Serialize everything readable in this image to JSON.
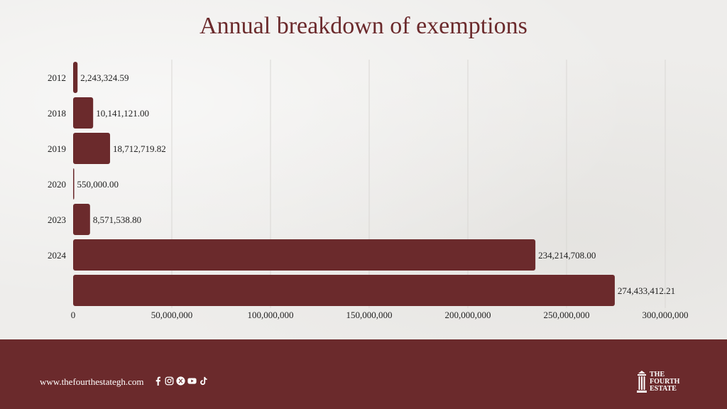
{
  "chart_data": {
    "type": "bar",
    "orientation": "horizontal",
    "title": "Annual breakdown of exemptions",
    "categories": [
      "2012",
      "2018",
      "2019",
      "2020",
      "2023",
      "2024",
      ""
    ],
    "values": [
      2243324.59,
      10141121.0,
      18712719.82,
      550000.0,
      8571538.8,
      234214708.0,
      274433412.21
    ],
    "value_labels": [
      "2,243,324.59",
      "10,141,121.00",
      "18,712,719.82",
      "550,000.00",
      "8,571,538.80",
      "234,214,708.00",
      "274,433,412.21"
    ],
    "x_ticks": [
      0,
      50000000,
      100000000,
      150000000,
      200000000,
      250000000,
      300000000
    ],
    "x_tick_labels": [
      "0",
      "50,000,000",
      "100,000,000",
      "150,000,000",
      "200,000,000",
      "250,000,000",
      "300,000,000"
    ],
    "xlim": [
      0,
      300000000
    ],
    "grid": "vertical",
    "bar_color": "#6b2a2c"
  },
  "footer": {
    "website": "www.thefourthestategh.com",
    "socials": [
      "facebook-icon",
      "instagram-icon",
      "x-icon",
      "youtube-icon",
      "tiktok-icon"
    ],
    "logo_lines": [
      "THE",
      "FOURTH",
      "ESTATE"
    ],
    "bg_color": "#6b2a2c"
  }
}
